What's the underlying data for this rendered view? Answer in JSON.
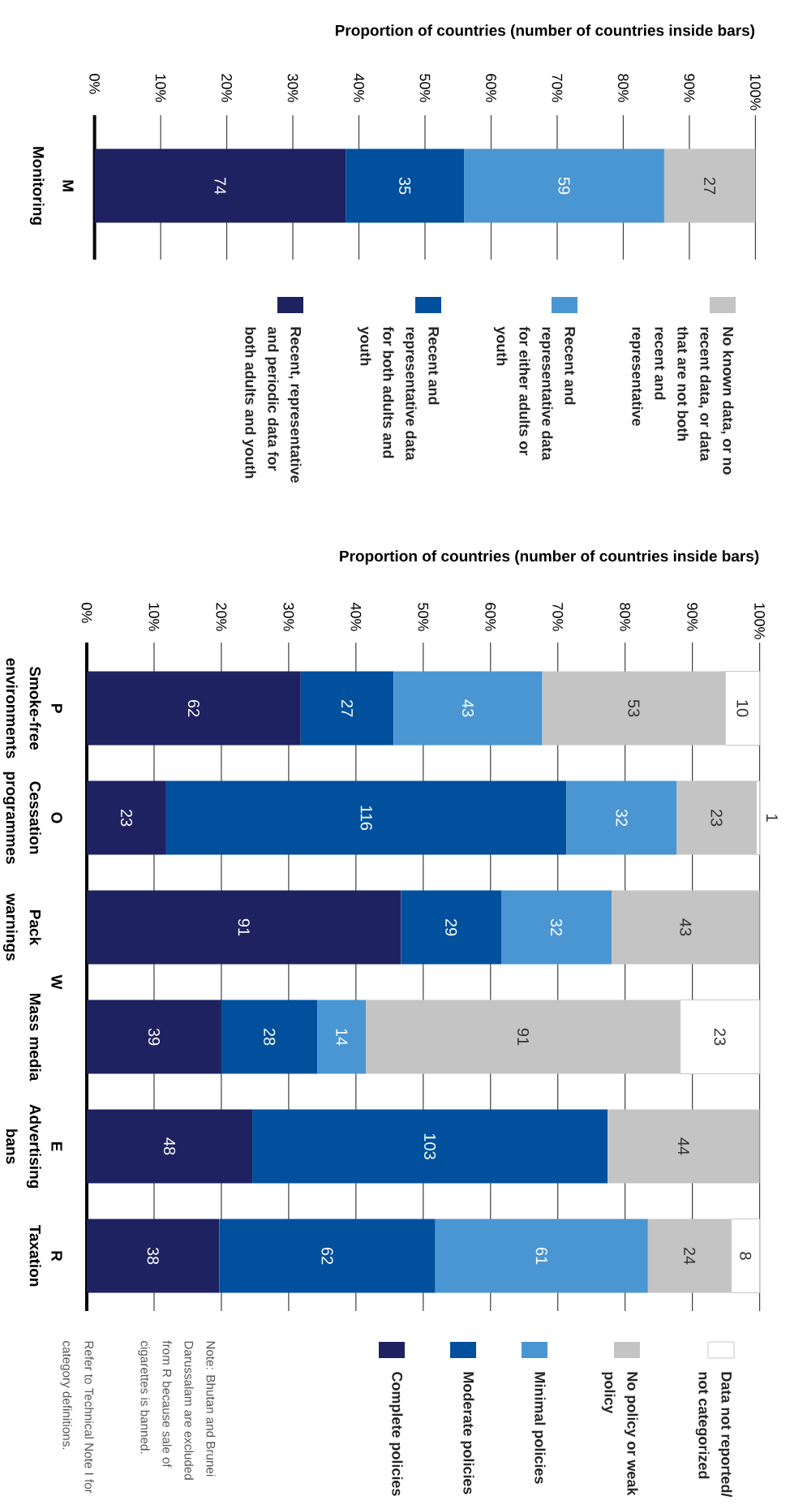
{
  "chart_data": [
    {
      "type": "bar",
      "orientation": "horizontal",
      "stacked": true,
      "xlabel": "Proportion of countries (number of countries inside bars)",
      "categories": [
        "Monitoring"
      ],
      "xlim": [
        0,
        100
      ],
      "xticks": [
        {
          "value": 0,
          "label": "0%"
        },
        {
          "value": 10,
          "label": "10%"
        },
        {
          "value": 20,
          "label": "20%"
        },
        {
          "value": 30,
          "label": "30%"
        },
        {
          "value": 40,
          "label": "40%"
        },
        {
          "value": 50,
          "label": "50%"
        },
        {
          "value": 60,
          "label": "60%"
        },
        {
          "value": 70,
          "label": "70%"
        },
        {
          "value": 80,
          "label": "80%"
        },
        {
          "value": 90,
          "label": "90%"
        },
        {
          "value": 100,
          "label": "100%"
        }
      ],
      "grid": "x",
      "legend": "bottom",
      "series": [
        {
          "name": "Recent, representative and periodic data for both adults and youth",
          "color": "#1f2260",
          "values": [
            38.0
          ]
        },
        {
          "name": "Recent and representative data for both adults and youth",
          "color": "#00509e",
          "values": [
            17.9
          ]
        },
        {
          "name": "Recent and representative data for either adults or youth",
          "color": "#4a96d3",
          "values": [
            30.3
          ]
        },
        {
          "name": "No known data, or no recent data, or data that are not both recent and representative",
          "color": "#c4c4c4",
          "values": [
            13.8
          ]
        }
      ],
      "annotations": [
        "M",
        "74",
        "35",
        "59",
        "27"
      ]
    },
    {
      "type": "bar",
      "orientation": "horizontal",
      "stacked": true,
      "xlabel": "Proportion of countries (number of countries inside bars)",
      "categories": [
        "Smoke-free environments",
        "Cessation programmes",
        "Pack warnings",
        "Mass media",
        "Advertising bans",
        "Taxation"
      ],
      "xlim": [
        0,
        100
      ],
      "xticks": [
        {
          "value": 0,
          "label": "0%"
        },
        {
          "value": 10,
          "label": "10%"
        },
        {
          "value": 20,
          "label": "20%"
        },
        {
          "value": 30,
          "label": "30%"
        },
        {
          "value": 40,
          "label": "40%"
        },
        {
          "value": 50,
          "label": "50%"
        },
        {
          "value": 60,
          "label": "60%"
        },
        {
          "value": 70,
          "label": "70%"
        },
        {
          "value": 80,
          "label": "80%"
        },
        {
          "value": 90,
          "label": "90%"
        },
        {
          "value": 100,
          "label": "100%"
        }
      ],
      "grid": "x",
      "legend": "bottom",
      "series": [
        {
          "name": "Complete policies",
          "color": "#1f2260",
          "values": [
            31.8,
            11.8,
            46.7,
            20.0,
            24.6,
            19.7
          ]
        },
        {
          "name": "Moderate policies",
          "color": "#00509e",
          "values": [
            13.8,
            59.5,
            14.9,
            14.3,
            52.8,
            32.1
          ]
        },
        {
          "name": "Minimal policies",
          "color": "#4a96d3",
          "values": [
            22.1,
            16.4,
            16.4,
            7.2,
            null,
            31.6
          ]
        },
        {
          "name": "No policy or weak policy",
          "color": "#c4c4c4",
          "values": [
            27.2,
            11.8,
            22.0,
            46.7,
            22.6,
            12.4
          ]
        },
        {
          "name": "Data not reported/ not categorized",
          "color": "#ffffff",
          "values": [
            5.1,
            0.5,
            null,
            11.8,
            null,
            4.2
          ]
        }
      ],
      "annotations": [
        "P",
        "O",
        "W",
        "E",
        "R",
        "Note: Bhutan and Brunei Darussalam are excluded from R because sale of cigarettes is banned.",
        "Refer to Technical Note I for category definitions.",
        "62",
        "27",
        "43",
        "53",
        "10",
        "23",
        "116",
        "32",
        "23",
        "1",
        "91",
        "29",
        "32",
        "43",
        "39",
        "28",
        "14",
        "91",
        "23",
        "48",
        "103",
        "44",
        "38",
        "62",
        "61",
        "24",
        "8"
      ]
    }
  ]
}
